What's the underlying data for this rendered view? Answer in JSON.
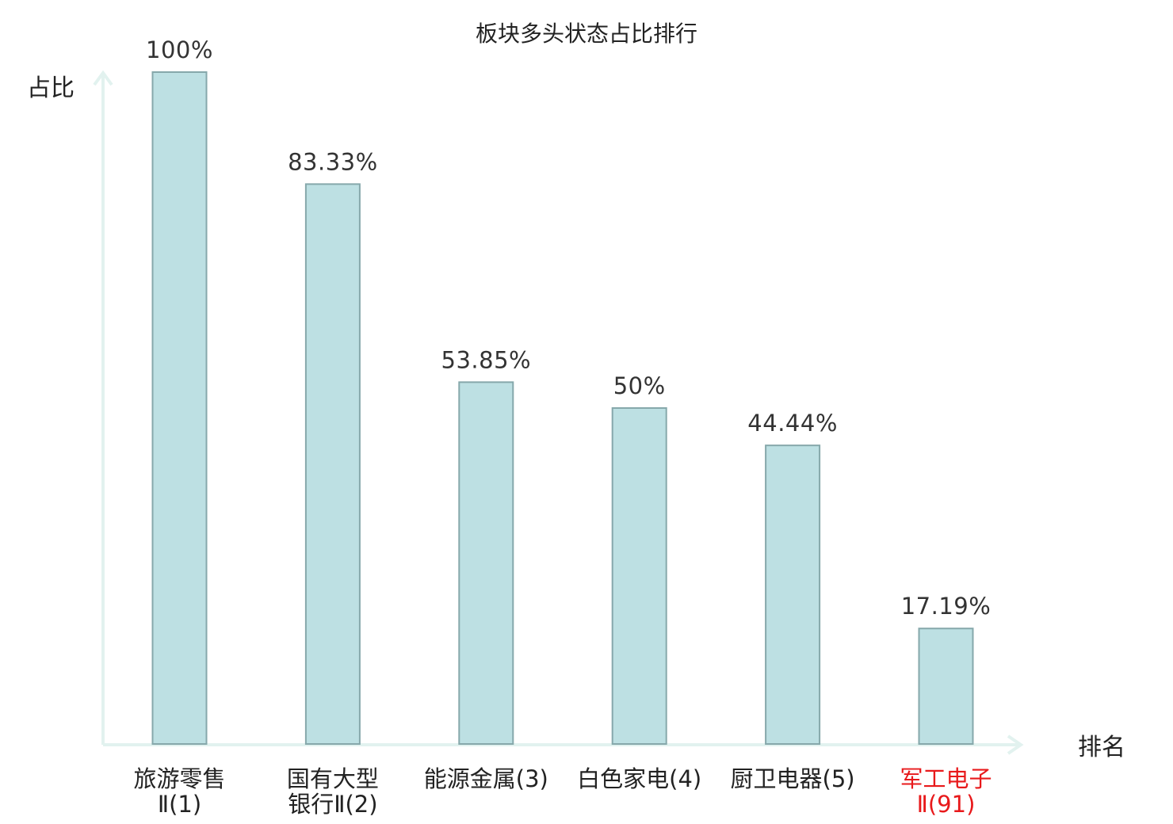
{
  "chart_data": {
    "type": "bar",
    "title": "板块多头状态占比排行",
    "ylabel": "占比",
    "xlabel": "排名",
    "ylim": [
      0,
      100
    ],
    "categories": [
      {
        "lines": [
          "旅游零售",
          "Ⅱ(1)"
        ],
        "highlight": false
      },
      {
        "lines": [
          "国有大型",
          "银行Ⅱ(2)"
        ],
        "highlight": false
      },
      {
        "lines": [
          "能源金属(3)"
        ],
        "highlight": false
      },
      {
        "lines": [
          "白色家电(4)"
        ],
        "highlight": false
      },
      {
        "lines": [
          "厨卫电器(5)"
        ],
        "highlight": false
      },
      {
        "lines": [
          "军工电子",
          "Ⅱ(91)"
        ],
        "highlight": true
      }
    ],
    "values": [
      100,
      83.33,
      53.85,
      50,
      44.44,
      17.19
    ],
    "value_labels": [
      "100%",
      "83.33%",
      "53.85%",
      "50%",
      "44.44%",
      "17.19%"
    ],
    "colors": {
      "bar_fill": "#bde0e3",
      "bar_stroke": "#86a8ab",
      "axis": "#e2f2ef",
      "highlight": "#e8191b"
    },
    "grid": false,
    "legend": "none"
  }
}
